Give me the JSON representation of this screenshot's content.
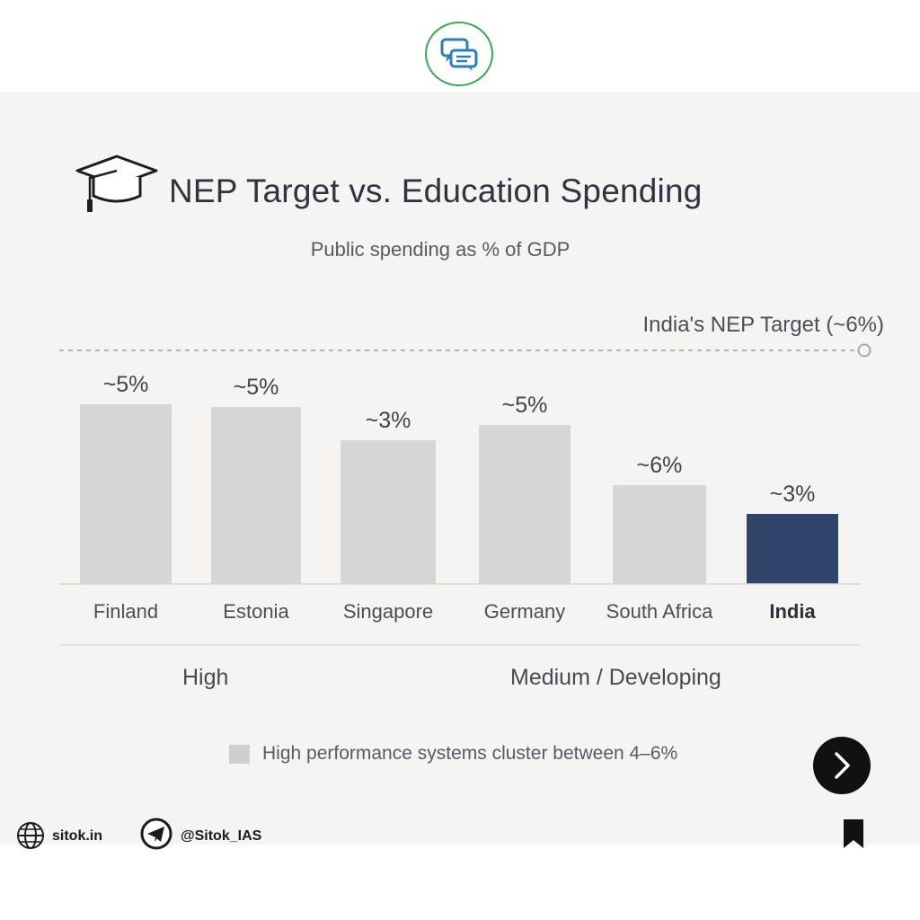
{
  "header": {
    "logo_icon": "chat-bubbles-icon"
  },
  "title": "NEP Target vs. Education Spending",
  "subtitle": "Public spending as % of GDP",
  "chart_data": {
    "type": "bar",
    "categories": [
      "Finland",
      "Estonia",
      "Singapore",
      "Germany",
      "South Africa",
      "India"
    ],
    "values": [
      5,
      5,
      3,
      5,
      6,
      3
    ],
    "bar_value_labels": [
      "~5%",
      "~5%",
      "~3%",
      "~5%",
      "~6%",
      "~3%"
    ],
    "highlight_category": "India",
    "colors": {
      "default": "#d6d6d6",
      "highlight": "#2e4468"
    },
    "target_line": {
      "label": "India's NEP Target (~6%)",
      "value": 6
    },
    "groups": [
      "High",
      "Medium / Developing"
    ],
    "legend": {
      "label": "High performance systems cluster between 4–6%",
      "color": "#cfcfcf"
    }
  },
  "footer": {
    "website": "sitok.in",
    "website_icon": "globe-icon",
    "handle": "@Sitok_IAS",
    "handle_icon": "telegram-icon",
    "bookmark_icon": "bookmark-icon",
    "next_icon": "chevron-right-icon"
  }
}
